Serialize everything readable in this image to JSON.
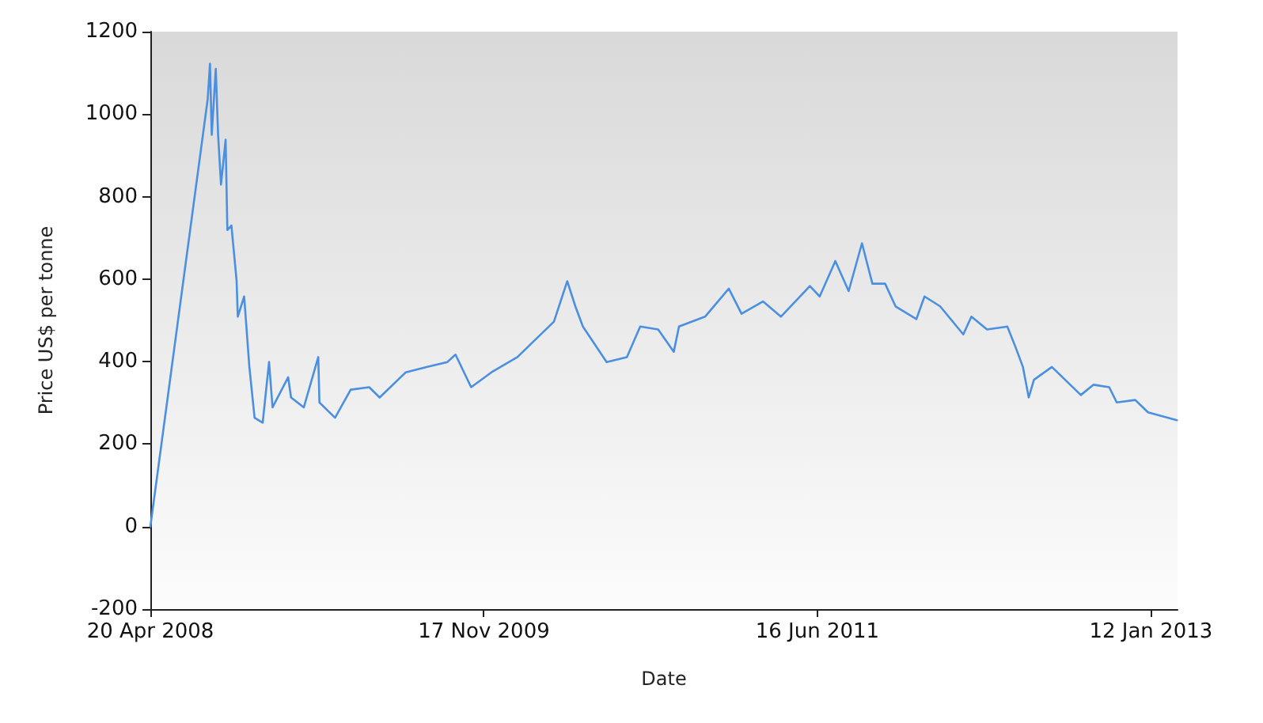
{
  "chart_data": {
    "type": "line",
    "xlabel": "Date",
    "ylabel": "Price US$ per tonne",
    "xlim": [
      "2008-04-20",
      "2013-02-27"
    ],
    "xticks": [
      {
        "value": "2008-04-20",
        "label": "20 Apr 2008"
      },
      {
        "value": "2009-11-17",
        "label": "17 Nov 2009"
      },
      {
        "value": "2011-06-16",
        "label": "16 Jun 2011"
      },
      {
        "value": "2013-01-12",
        "label": "12 Jan 2013"
      }
    ],
    "ylim": [
      -200,
      1200
    ],
    "yticks": [
      -200,
      0,
      200,
      400,
      600,
      800,
      1000,
      1200
    ],
    "marker": "none",
    "line_style": "solid",
    "x": [
      "2008-04-20",
      "2008-07-28",
      "2008-08-01",
      "2008-08-04",
      "2008-08-11",
      "2008-08-15",
      "2008-08-20",
      "2008-08-28",
      "2008-08-31",
      "2008-09-07",
      "2008-09-16",
      "2008-09-18",
      "2008-09-29",
      "2008-10-08",
      "2008-10-17",
      "2008-10-31",
      "2008-11-11",
      "2008-11-17",
      "2008-12-14",
      "2008-12-19",
      "2009-01-10",
      "2009-02-04",
      "2009-02-06",
      "2009-03-05",
      "2009-04-01",
      "2009-05-03",
      "2009-05-21",
      "2009-07-05",
      "2009-08-10",
      "2009-09-15",
      "2009-09-29",
      "2009-10-26",
      "2009-11-30",
      "2010-01-14",
      "2010-02-10",
      "2010-03-18",
      "2010-04-10",
      "2010-04-24",
      "2010-05-07",
      "2010-06-17",
      "2010-07-22",
      "2010-08-14",
      "2010-09-14",
      "2010-10-11",
      "2010-10-20",
      "2010-12-04",
      "2011-01-14",
      "2011-02-05",
      "2011-03-14",
      "2011-04-14",
      "2011-06-03",
      "2011-06-20",
      "2011-07-17",
      "2011-08-09",
      "2011-09-01",
      "2011-09-19",
      "2011-10-11",
      "2011-10-29",
      "2011-12-04",
      "2011-12-18",
      "2012-01-14",
      "2012-02-23",
      "2012-03-08",
      "2012-04-04",
      "2012-05-09",
      "2012-05-23",
      "2012-06-05",
      "2012-06-15",
      "2012-06-24",
      "2012-07-25",
      "2012-09-13",
      "2012-10-05",
      "2012-11-01",
      "2012-11-14",
      "2012-12-16",
      "2013-01-07",
      "2013-02-26"
    ],
    "series": [
      {
        "color": "#4a8fe0",
        "values": [
          0,
          1036,
          1122,
          950,
          1110,
          950,
          829,
          938,
          719,
          730,
          595,
          509,
          558,
          387,
          264,
          252,
          399,
          289,
          362,
          313,
          289,
          411,
          301,
          264,
          332,
          338,
          313,
          374,
          387,
          399,
          417,
          338,
          374,
          411,
          448,
          497,
          595,
          534,
          485,
          399,
          411,
          485,
          478,
          424,
          485,
          509,
          577,
          516,
          546,
          509,
          583,
          558,
          644,
          571,
          687,
          589,
          589,
          534,
          503,
          558,
          534,
          466,
          509,
          478,
          485,
          436,
          387,
          313,
          356,
          387,
          319,
          344,
          338,
          301,
          307,
          277,
          258
        ]
      }
    ]
  }
}
